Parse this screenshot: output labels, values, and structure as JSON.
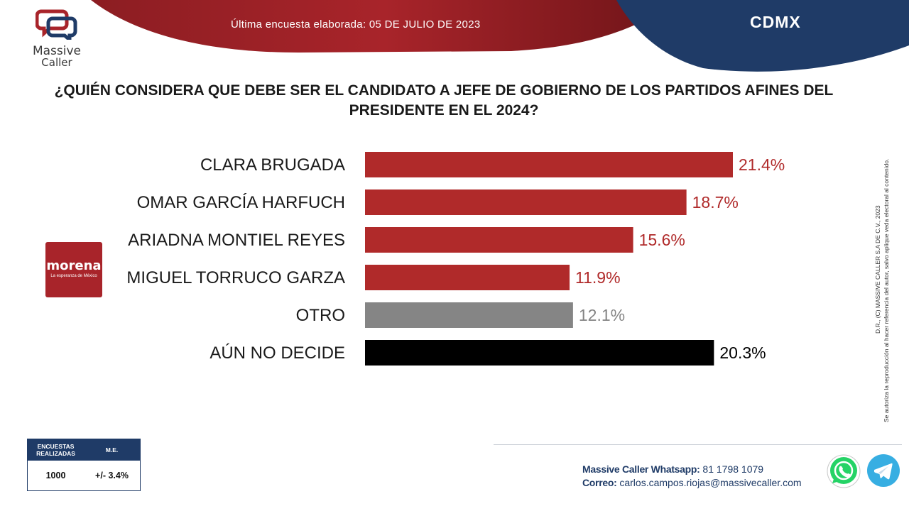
{
  "header": {
    "brand_line1": "Massive",
    "brand_line2": "Caller",
    "survey_date": "Última encuesta elaborada: 05 DE JULIO DE 2023",
    "region": "CDMX"
  },
  "question": "¿QUIÉN CONSIDERA QUE DEBE SER EL CANDIDATO A JEFE DE GOBIERNO DE LOS PARTIDOS AFINES DEL PRESIDENTE EN EL 2024?",
  "party": {
    "name": "morena",
    "tagline": "La esperanza de México",
    "color": "#a8242a"
  },
  "chart_data": {
    "type": "bar",
    "orientation": "horizontal",
    "categories": [
      "CLARA BRUGADA",
      "OMAR GARCÍA HARFUCH",
      "ARIADNA MONTIEL REYES",
      "MIGUEL TORRUCO GARZA",
      "OTRO",
      "AÚN NO DECIDE"
    ],
    "values": [
      21.4,
      18.7,
      15.6,
      11.9,
      12.1,
      20.3
    ],
    "value_labels": [
      "21.4%",
      "18.7%",
      "15.6%",
      "11.9%",
      "12.1%",
      "20.3%"
    ],
    "bar_colors": [
      "#b02a2a",
      "#b02a2a",
      "#b02a2a",
      "#b02a2a",
      "#858585",
      "#000000"
    ],
    "label_colors": [
      "#b02a2a",
      "#b02a2a",
      "#b02a2a",
      "#b02a2a",
      "#858585",
      "#000000"
    ],
    "xlim": [
      0,
      21.4
    ],
    "grid": false
  },
  "side_note": {
    "line1": "D.R., (C) MASSIVE CALLER S.A DE C.V., 2023",
    "line2": "Se autoriza la reproducción al hacer referencia del autor, salvo aplique veda electoral al contenido."
  },
  "survey_box": {
    "col1_header": "ENCUESTAS REALIZADAS",
    "col2_header": "M.E.",
    "col1_value": "1000",
    "col2_value": "+/- 3.4%"
  },
  "contact": {
    "whatsapp_label": "Massive Caller Whatsapp:",
    "whatsapp_number": "81 1798 1079",
    "email_label": "Correo:",
    "email": "carlos.campos.riojas@massivecaller.com"
  },
  "colors": {
    "banner_red": "#a8242a",
    "banner_navy": "#1f3b67",
    "navy_text": "#1f3b67"
  }
}
